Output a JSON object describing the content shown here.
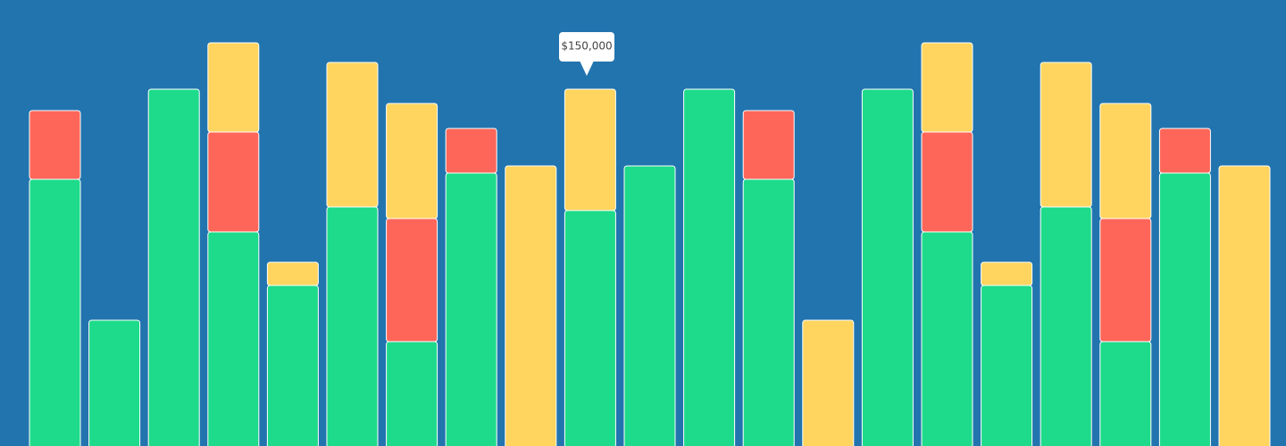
{
  "chart_data": {
    "type": "stacked-bar",
    "annotation": "$150,000",
    "ylim": [
      0,
      187500
    ],
    "series": [
      {
        "color": "#1ddb8a",
        "values": [
          112125,
          52875,
          150000,
          90000,
          67500,
          100500,
          43875,
          114750,
          0,
          99000,
          117750,
          150000,
          112125,
          0,
          150000,
          90000,
          67500,
          100500,
          43875,
          114750,
          0
        ]
      },
      {
        "color": "#ff665a",
        "values": [
          28875,
          0,
          0,
          42000,
          0,
          0,
          51750,
          18750,
          0,
          0,
          0,
          0,
          28875,
          0,
          0,
          42000,
          0,
          0,
          51750,
          18750,
          0
        ]
      },
      {
        "color": "#ffd55f",
        "values": [
          0,
          0,
          0,
          37500,
          9750,
          60750,
          48375,
          0,
          117750,
          51000,
          0,
          0,
          0,
          52875,
          0,
          37500,
          9750,
          60750,
          48375,
          0,
          117750
        ]
      }
    ]
  }
}
